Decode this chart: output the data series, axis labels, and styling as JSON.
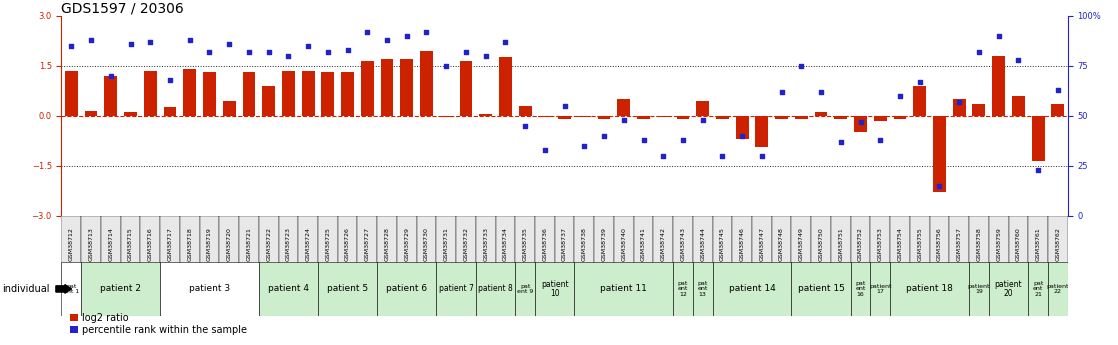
{
  "title": "GDS1597 / 20306",
  "samples": [
    "GSM38712",
    "GSM38713",
    "GSM38714",
    "GSM38715",
    "GSM38716",
    "GSM38717",
    "GSM38718",
    "GSM38719",
    "GSM38720",
    "GSM38721",
    "GSM38722",
    "GSM38723",
    "GSM38724",
    "GSM38725",
    "GSM38726",
    "GSM38727",
    "GSM38728",
    "GSM38729",
    "GSM38730",
    "GSM38731",
    "GSM38732",
    "GSM38733",
    "GSM38734",
    "GSM38735",
    "GSM38736",
    "GSM38737",
    "GSM38738",
    "GSM38739",
    "GSM38740",
    "GSM38741",
    "GSM38742",
    "GSM38743",
    "GSM38744",
    "GSM38745",
    "GSM38746",
    "GSM38747",
    "GSM38748",
    "GSM38749",
    "GSM38750",
    "GSM38751",
    "GSM38752",
    "GSM38753",
    "GSM38754",
    "GSM38755",
    "GSM38756",
    "GSM38757",
    "GSM38758",
    "GSM38759",
    "GSM38760",
    "GSM38761",
    "GSM38762"
  ],
  "log2_ratio": [
    1.35,
    0.15,
    1.2,
    0.1,
    1.35,
    0.25,
    1.4,
    1.3,
    0.45,
    1.3,
    0.9,
    1.35,
    1.35,
    1.3,
    1.3,
    1.65,
    1.7,
    1.7,
    1.95,
    -0.05,
    1.65,
    0.05,
    1.75,
    0.3,
    -0.05,
    -0.1,
    -0.05,
    -0.1,
    0.5,
    -0.1,
    -0.05,
    -0.1,
    0.45,
    -0.1,
    -0.7,
    -0.95,
    -0.1,
    -0.1,
    0.1,
    -0.1,
    -0.5,
    -0.15,
    -0.1,
    0.9,
    -2.3,
    0.5,
    0.35,
    1.8,
    0.6,
    -1.35,
    0.35
  ],
  "percentile_rank": [
    85,
    88,
    70,
    86,
    87,
    68,
    88,
    82,
    86,
    82,
    82,
    80,
    85,
    82,
    83,
    92,
    88,
    90,
    92,
    75,
    82,
    80,
    87,
    45,
    33,
    55,
    35,
    40,
    48,
    38,
    30,
    38,
    48,
    30,
    40,
    30,
    62,
    75,
    62,
    37,
    47,
    38,
    60,
    67,
    15,
    57,
    82,
    90,
    78,
    23,
    63
  ],
  "patients": [
    {
      "label": "pat\nent 1",
      "start": 0,
      "end": 1,
      "color": "#ffffff"
    },
    {
      "label": "patient 2",
      "start": 1,
      "end": 5,
      "color": "#cceecc"
    },
    {
      "label": "patient 3",
      "start": 5,
      "end": 10,
      "color": "#ffffff"
    },
    {
      "label": "patient 4",
      "start": 10,
      "end": 13,
      "color": "#cceecc"
    },
    {
      "label": "patient 5",
      "start": 13,
      "end": 16,
      "color": "#cceecc"
    },
    {
      "label": "patient 6",
      "start": 16,
      "end": 19,
      "color": "#cceecc"
    },
    {
      "label": "patient 7",
      "start": 19,
      "end": 21,
      "color": "#cceecc"
    },
    {
      "label": "patient 8",
      "start": 21,
      "end": 23,
      "color": "#cceecc"
    },
    {
      "label": "pat\nent 9",
      "start": 23,
      "end": 24,
      "color": "#cceecc"
    },
    {
      "label": "patient\n10",
      "start": 24,
      "end": 26,
      "color": "#cceecc"
    },
    {
      "label": "patient 11",
      "start": 26,
      "end": 31,
      "color": "#cceecc"
    },
    {
      "label": "pat\nent\n12",
      "start": 31,
      "end": 32,
      "color": "#cceecc"
    },
    {
      "label": "pat\nent\n13",
      "start": 32,
      "end": 33,
      "color": "#cceecc"
    },
    {
      "label": "patient 14",
      "start": 33,
      "end": 37,
      "color": "#cceecc"
    },
    {
      "label": "patient 15",
      "start": 37,
      "end": 40,
      "color": "#cceecc"
    },
    {
      "label": "pat\nent\n16",
      "start": 40,
      "end": 41,
      "color": "#cceecc"
    },
    {
      "label": "patient\n17",
      "start": 41,
      "end": 42,
      "color": "#cceecc"
    },
    {
      "label": "patient 18",
      "start": 42,
      "end": 46,
      "color": "#cceecc"
    },
    {
      "label": "patient\n19",
      "start": 46,
      "end": 47,
      "color": "#cceecc"
    },
    {
      "label": "patient\n20",
      "start": 47,
      "end": 49,
      "color": "#cceecc"
    },
    {
      "label": "pat\nent\n21",
      "start": 49,
      "end": 50,
      "color": "#cceecc"
    },
    {
      "label": "patient\n22",
      "start": 50,
      "end": 51,
      "color": "#cceecc"
    }
  ],
  "ylim": [
    -3,
    3
  ],
  "yticks_left": [
    -3,
    -1.5,
    0,
    1.5,
    3
  ],
  "yticks_right": [
    0,
    25,
    50,
    75,
    100
  ],
  "bar_color": "#cc2200",
  "dot_color": "#2222cc",
  "zero_line_color": "#cc2200",
  "grid_line_color": "#222222",
  "title_fontsize": 10,
  "tick_fontsize": 6,
  "sample_fontsize": 4.5,
  "patient_fontsize": 6.5,
  "legend_fontsize": 7
}
